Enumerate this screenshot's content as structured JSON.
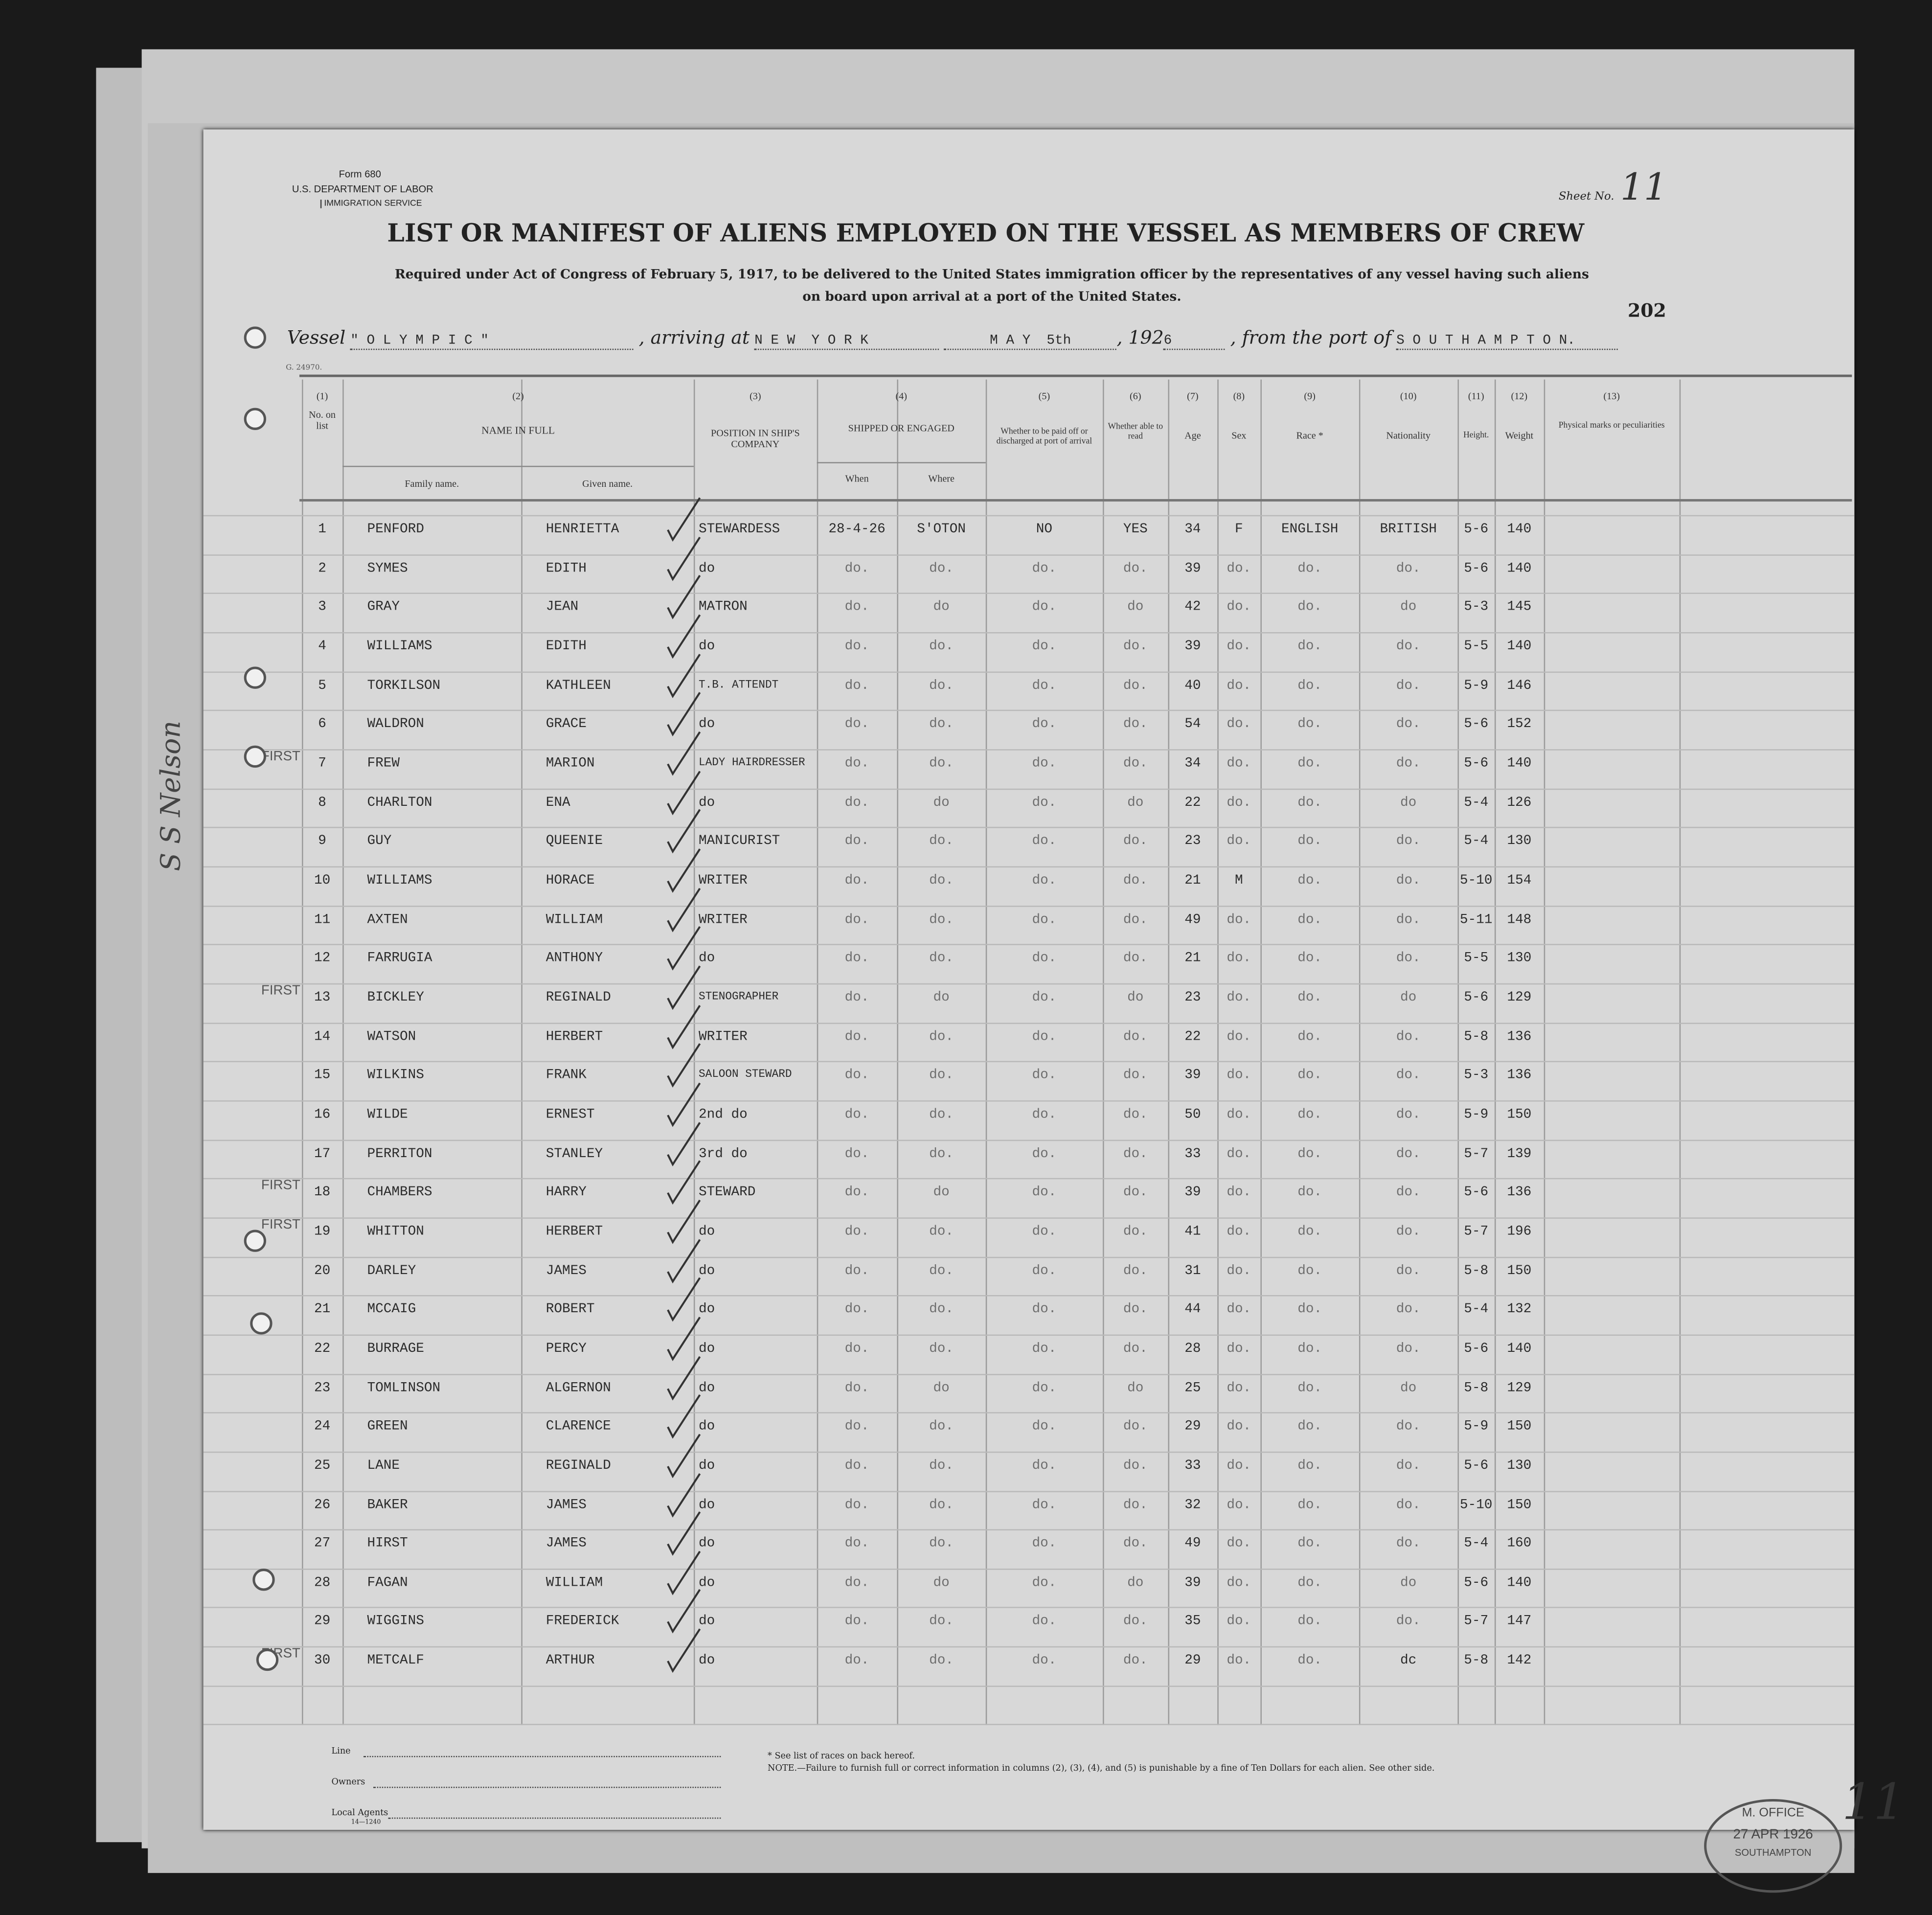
{
  "form": {
    "form_number": "Form 680",
    "department": "U.S. DEPARTMENT OF LABOR",
    "service": "IMMIGRATION SERVICE",
    "sheet_label": "Sheet No.",
    "sheet_number": "11",
    "page_number": "202",
    "print_code": "G. 24970.",
    "title": "LIST OR MANIFEST OF ALIENS EMPLOYED ON THE VESSEL AS MEMBERS OF CREW",
    "subtitle_1": "Required under Act of Congress of February 5, 1917, to be delivered to the United States immigration officer by the representatives of any vessel having such aliens",
    "subtitle_2": "on board upon arrival at a port of the United States."
  },
  "voyage": {
    "vessel_label": "Vessel",
    "vessel": "\" O L Y M P I C \"",
    "arriving_label": ", arriving at",
    "arriving_port": "N E W  Y O R K",
    "date": "M A Y  5th",
    "year_prefix": ", 192",
    "year_suffix": "6",
    "from_label": ", from the port of",
    "from_port": "S O U T H A M P T O N."
  },
  "columns": {
    "nums": [
      "(1)",
      "(2)",
      "(3)",
      "(4)",
      "(5)",
      "(6)",
      "(7)",
      "(8)",
      "(9)",
      "(10)",
      "(11)",
      "(12)",
      "(13)"
    ],
    "no": "No. on list",
    "name": "NAME IN FULL",
    "family": "Family name.",
    "given": "Given name.",
    "position": "POSITION IN SHIP'S COMPANY",
    "shipped": "SHIPPED OR ENGAGED",
    "when": "When",
    "where": "Where",
    "paid_off": "Whether to be paid off or discharged at port of arrival",
    "read": "Whether able to read",
    "age": "Age",
    "sex": "Sex",
    "race": "Race *",
    "nationality": "Nationality",
    "height": "Height.",
    "weight": "Weight",
    "marks": "Physical marks or peculiarities"
  },
  "rows": [
    {
      "no": "1",
      "family": "PENFORD",
      "given": "HENRIETTA",
      "position": "STEWARDESS",
      "when": "28-4-26",
      "where": "S'OTON",
      "paid": "NO",
      "read": "YES",
      "age": "34",
      "sex": "F",
      "race": "ENGLISH",
      "nat": "BRITISH",
      "height": "5-6",
      "weight": "140",
      "note": ""
    },
    {
      "no": "2",
      "family": "SYMES",
      "given": "EDITH",
      "position": "do",
      "when": "do.",
      "where": "do.",
      "paid": "do.",
      "read": "do.",
      "age": "39",
      "sex": "do.",
      "race": "do.",
      "nat": "do.",
      "height": "5-6",
      "weight": "140",
      "note": ""
    },
    {
      "no": "3",
      "family": "GRAY",
      "given": "JEAN",
      "position": "MATRON",
      "when": "do.",
      "where": "do",
      "paid": "do.",
      "read": "do",
      "age": "42",
      "sex": "do.",
      "race": "do.",
      "nat": "do",
      "height": "5-3",
      "weight": "145",
      "note": ""
    },
    {
      "no": "4",
      "family": "WILLIAMS",
      "given": "EDITH",
      "position": "do",
      "when": "do.",
      "where": "do.",
      "paid": "do.",
      "read": "do.",
      "age": "39",
      "sex": "do.",
      "race": "do.",
      "nat": "do.",
      "height": "5-5",
      "weight": "140",
      "note": ""
    },
    {
      "no": "5",
      "family": "TORKILSON",
      "given": "KATHLEEN",
      "position": "T.B. ATTENDT",
      "when": "do.",
      "where": "do.",
      "paid": "do.",
      "read": "do.",
      "age": "40",
      "sex": "do.",
      "race": "do.",
      "nat": "do.",
      "height": "5-9",
      "weight": "146",
      "note": ""
    },
    {
      "no": "6",
      "family": "WALDRON",
      "given": "GRACE",
      "position": "do",
      "when": "do.",
      "where": "do.",
      "paid": "do.",
      "read": "do.",
      "age": "54",
      "sex": "do.",
      "race": "do.",
      "nat": "do.",
      "height": "5-6",
      "weight": "152",
      "note": ""
    },
    {
      "no": "7",
      "family": "FREW",
      "given": "MARION",
      "position": "LADY HAIRDRESSER",
      "when": "do.",
      "where": "do.",
      "paid": "do.",
      "read": "do.",
      "age": "34",
      "sex": "do.",
      "race": "do.",
      "nat": "do.",
      "height": "5-6",
      "weight": "140",
      "note": "FIRST"
    },
    {
      "no": "8",
      "family": "CHARLTON",
      "given": "ENA",
      "position": "do",
      "when": "do.",
      "where": "do",
      "paid": "do.",
      "read": "do",
      "age": "22",
      "sex": "do.",
      "race": "do.",
      "nat": "do",
      "height": "5-4",
      "weight": "126",
      "note": ""
    },
    {
      "no": "9",
      "family": "GUY",
      "given": "QUEENIE",
      "position": "MANICURIST",
      "when": "do.",
      "where": "do.",
      "paid": "do.",
      "read": "do.",
      "age": "23",
      "sex": "do.",
      "race": "do.",
      "nat": "do.",
      "height": "5-4",
      "weight": "130",
      "note": ""
    },
    {
      "no": "10",
      "family": "WILLIAMS",
      "given": "HORACE",
      "position": "WRITER",
      "when": "do.",
      "where": "do.",
      "paid": "do.",
      "read": "do.",
      "age": "21",
      "sex": "M",
      "race": "do.",
      "nat": "do.",
      "height": "5-10",
      "weight": "154",
      "note": ""
    },
    {
      "no": "11",
      "family": "AXTEN",
      "given": "WILLIAM",
      "position": "WRITER",
      "when": "do.",
      "where": "do.",
      "paid": "do.",
      "read": "do.",
      "age": "49",
      "sex": "do.",
      "race": "do.",
      "nat": "do.",
      "height": "5-11",
      "weight": "148",
      "note": ""
    },
    {
      "no": "12",
      "family": "FARRUGIA",
      "given": "ANTHONY",
      "position": "do",
      "when": "do.",
      "where": "do.",
      "paid": "do.",
      "read": "do.",
      "age": "21",
      "sex": "do.",
      "race": "do.",
      "nat": "do.",
      "height": "5-5",
      "weight": "130",
      "note": ""
    },
    {
      "no": "13",
      "family": "BICKLEY",
      "given": "REGINALD",
      "position": "STENOGRAPHER",
      "when": "do.",
      "where": "do",
      "paid": "do.",
      "read": "do",
      "age": "23",
      "sex": "do.",
      "race": "do.",
      "nat": "do",
      "height": "5-6",
      "weight": "129",
      "note": "FIRST"
    },
    {
      "no": "14",
      "family": "WATSON",
      "given": "HERBERT",
      "position": "WRITER",
      "when": "do.",
      "where": "do.",
      "paid": "do.",
      "read": "do.",
      "age": "22",
      "sex": "do.",
      "race": "do.",
      "nat": "do.",
      "height": "5-8",
      "weight": "136",
      "note": ""
    },
    {
      "no": "15",
      "family": "WILKINS",
      "given": "FRANK",
      "position": "SALOON STEWARD",
      "when": "do.",
      "where": "do.",
      "paid": "do.",
      "read": "do.",
      "age": "39",
      "sex": "do.",
      "race": "do.",
      "nat": "do.",
      "height": "5-3",
      "weight": "136",
      "note": ""
    },
    {
      "no": "16",
      "family": "WILDE",
      "given": "ERNEST",
      "position": "2nd do",
      "when": "do.",
      "where": "do.",
      "paid": "do.",
      "read": "do.",
      "age": "50",
      "sex": "do.",
      "race": "do.",
      "nat": "do.",
      "height": "5-9",
      "weight": "150",
      "note": ""
    },
    {
      "no": "17",
      "family": "PERRITON",
      "given": "STANLEY",
      "position": "3rd do",
      "when": "do.",
      "where": "do.",
      "paid": "do.",
      "read": "do.",
      "age": "33",
      "sex": "do.",
      "race": "do.",
      "nat": "do.",
      "height": "5-7",
      "weight": "139",
      "note": ""
    },
    {
      "no": "18",
      "family": "CHAMBERS",
      "given": "HARRY",
      "position": "STEWARD",
      "when": "do.",
      "where": "do",
      "paid": "do.",
      "read": "do.",
      "age": "39",
      "sex": "do.",
      "race": "do.",
      "nat": "do.",
      "height": "5-6",
      "weight": "136",
      "note": "FIRST"
    },
    {
      "no": "19",
      "family": "WHITTON",
      "given": "HERBERT",
      "position": "do",
      "when": "do.",
      "where": "do.",
      "paid": "do.",
      "read": "do.",
      "age": "41",
      "sex": "do.",
      "race": "do.",
      "nat": "do.",
      "height": "5-7",
      "weight": "196",
      "note": "FIRST"
    },
    {
      "no": "20",
      "family": "DARLEY",
      "given": "JAMES",
      "position": "do",
      "when": "do.",
      "where": "do.",
      "paid": "do.",
      "read": "do.",
      "age": "31",
      "sex": "do.",
      "race": "do.",
      "nat": "do.",
      "height": "5-8",
      "weight": "150",
      "note": ""
    },
    {
      "no": "21",
      "family": "MCCAIG",
      "given": "ROBERT",
      "position": "do",
      "when": "do.",
      "where": "do.",
      "paid": "do.",
      "read": "do.",
      "age": "44",
      "sex": "do.",
      "race": "do.",
      "nat": "do.",
      "height": "5-4",
      "weight": "132",
      "note": ""
    },
    {
      "no": "22",
      "family": "BURRAGE",
      "given": "PERCY",
      "position": "do",
      "when": "do.",
      "where": "do.",
      "paid": "do.",
      "read": "do.",
      "age": "28",
      "sex": "do.",
      "race": "do.",
      "nat": "do.",
      "height": "5-6",
      "weight": "140",
      "note": ""
    },
    {
      "no": "23",
      "family": "TOMLINSON",
      "given": "ALGERNON",
      "position": "do",
      "when": "do.",
      "where": "do",
      "paid": "do.",
      "read": "do",
      "age": "25",
      "sex": "do.",
      "race": "do.",
      "nat": "do",
      "height": "5-8",
      "weight": "129",
      "note": ""
    },
    {
      "no": "24",
      "family": "GREEN",
      "given": "CLARENCE",
      "position": "do",
      "when": "do.",
      "where": "do.",
      "paid": "do.",
      "read": "do.",
      "age": "29",
      "sex": "do.",
      "race": "do.",
      "nat": "do.",
      "height": "5-9",
      "weight": "150",
      "note": ""
    },
    {
      "no": "25",
      "family": "LANE",
      "given": "REGINALD",
      "position": "do",
      "when": "do.",
      "where": "do.",
      "paid": "do.",
      "read": "do.",
      "age": "33",
      "sex": "do.",
      "race": "do.",
      "nat": "do.",
      "height": "5-6",
      "weight": "130",
      "note": ""
    },
    {
      "no": "26",
      "family": "BAKER",
      "given": "JAMES",
      "position": "do",
      "when": "do.",
      "where": "do.",
      "paid": "do.",
      "read": "do.",
      "age": "32",
      "sex": "do.",
      "race": "do.",
      "nat": "do.",
      "height": "5-10",
      "weight": "150",
      "note": ""
    },
    {
      "no": "27",
      "family": "HIRST",
      "given": "JAMES",
      "position": "do",
      "when": "do.",
      "where": "do.",
      "paid": "do.",
      "read": "do.",
      "age": "49",
      "sex": "do.",
      "race": "do.",
      "nat": "do.",
      "height": "5-4",
      "weight": "160",
      "note": ""
    },
    {
      "no": "28",
      "family": "FAGAN",
      "given": "WILLIAM",
      "position": "do",
      "when": "do.",
      "where": "do",
      "paid": "do.",
      "read": "do",
      "age": "39",
      "sex": "do.",
      "race": "do.",
      "nat": "do",
      "height": "5-6",
      "weight": "140",
      "note": ""
    },
    {
      "no": "29",
      "family": "WIGGINS",
      "given": "FREDERICK",
      "position": "do",
      "when": "do.",
      "where": "do.",
      "paid": "do.",
      "read": "do.",
      "age": "35",
      "sex": "do.",
      "race": "do.",
      "nat": "do.",
      "height": "5-7",
      "weight": "147",
      "note": ""
    },
    {
      "no": "30",
      "family": "METCALF",
      "given": "ARTHUR",
      "position": "do",
      "when": "do.",
      "where": "do.",
      "paid": "do.",
      "read": "do.",
      "age": "29",
      "sex": "do.",
      "race": "do.",
      "nat": "dc",
      "height": "5-8",
      "weight": "142",
      "note": "FIRST"
    }
  ],
  "footer": {
    "line_label": "Line",
    "owners_label": "Owners",
    "agents_label": "Local Agents",
    "agents_code": "14—1240",
    "races_note": "* See list of races on back hereof.",
    "note": "NOTE.—Failure to furnish full or correct information in columns (2), (3), (4), and (5) is punishable by a fine of Ten Dollars for each alien.   See other side."
  },
  "stamp": {
    "top": "M. OFFICE",
    "date": "27 APR 1926",
    "bottom": "SOUTHAMPTON"
  },
  "margin_handwriting": "S S Nelson",
  "end_mark": "11"
}
